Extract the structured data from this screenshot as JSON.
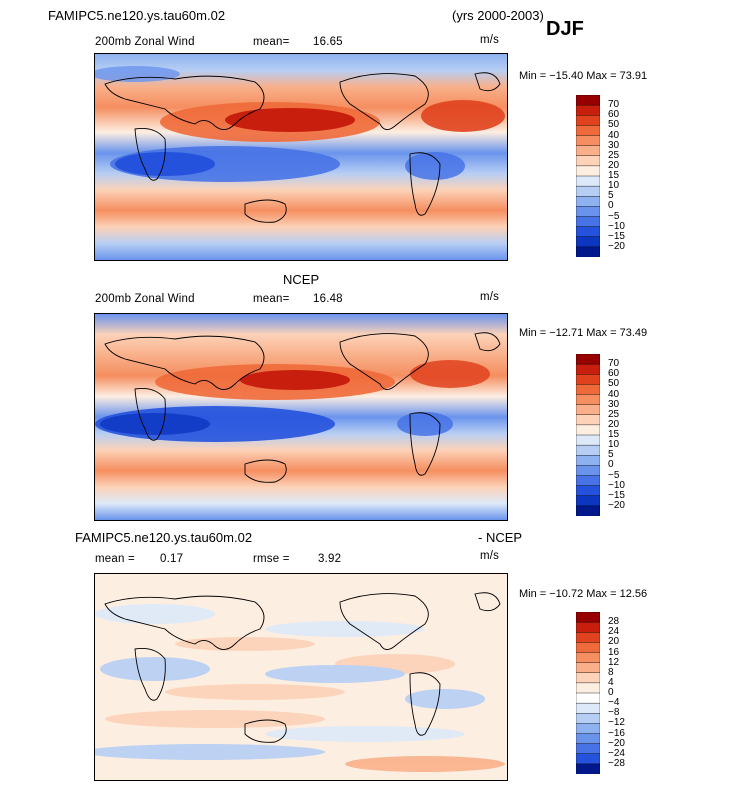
{
  "header": {
    "title": "FAMIPC5.ne120.ys.tau60m.02",
    "years": "(yrs 2000-2003)",
    "season": "DJF"
  },
  "panels": [
    {
      "title": "",
      "left_label": "200mb Zonal Wind",
      "mean_label": "mean=",
      "mean_value": "16.65",
      "units": "m/s",
      "minmax": "Min = −15.40  Max =  73.91",
      "levels": [
        "70",
        "60",
        "50",
        "40",
        "30",
        "25",
        "20",
        "15",
        "10",
        "5",
        "0",
        "−5",
        "−10",
        "−15",
        "−20"
      ],
      "colors": [
        "#960000",
        "#c81e0e",
        "#e0421e",
        "#ef6a3a",
        "#f58e60",
        "#f9b08a",
        "#fcd2b8",
        "#fdeee2",
        "#dde9f9",
        "#b7cef4",
        "#8eb2f0",
        "#6a94ec",
        "#4773e6",
        "#2552dd",
        "#0d36c0",
        "#00188a"
      ]
    },
    {
      "title": "NCEP",
      "left_label": "200mb Zonal Wind",
      "mean_label": "mean=",
      "mean_value": "16.48",
      "units": "m/s",
      "minmax": "Min = −12.71  Max =  73.49",
      "levels": [
        "70",
        "60",
        "50",
        "40",
        "30",
        "25",
        "20",
        "15",
        "10",
        "5",
        "0",
        "−5",
        "−10",
        "−15",
        "−20"
      ],
      "colors": [
        "#960000",
        "#c81e0e",
        "#e0421e",
        "#ef6a3a",
        "#f58e60",
        "#f9b08a",
        "#fcd2b8",
        "#fdeee2",
        "#dde9f9",
        "#b7cef4",
        "#8eb2f0",
        "#6a94ec",
        "#4773e6",
        "#2552dd",
        "#0d36c0",
        "#00188a"
      ]
    },
    {
      "title_left": "FAMIPC5.ne120.ys.tau60m.02",
      "title_right": "- NCEP",
      "left_label": "mean =",
      "left_value": "0.17",
      "mean_label": "rmse =",
      "mean_value": "3.92",
      "units": "m/s",
      "minmax": "Min = −10.72  Max =  12.56",
      "levels": [
        "28",
        "24",
        "20",
        "16",
        "12",
        "8",
        "4",
        "0",
        "−4",
        "−8",
        "−12",
        "−16",
        "−20",
        "−24",
        "−28"
      ],
      "colors": [
        "#960000",
        "#c81e0e",
        "#e0421e",
        "#ef6a3a",
        "#f58e60",
        "#f9b08a",
        "#fcd2b8",
        "#fdeee2",
        "#ffffff",
        "#dde9f9",
        "#b7cef4",
        "#8eb2f0",
        "#6a94ec",
        "#4773e6",
        "#2552dd",
        "#00188a"
      ]
    }
  ]
}
